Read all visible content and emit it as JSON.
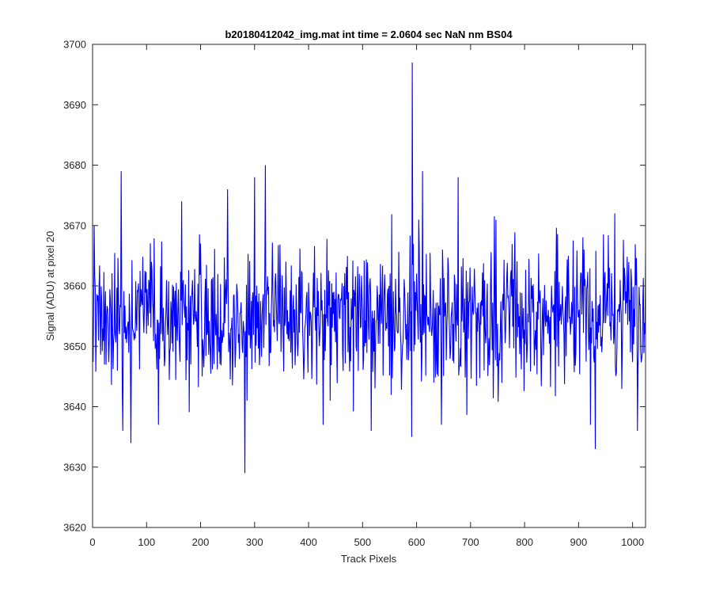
{
  "chart_data": {
    "type": "line",
    "title": "b20180412042_img.mat int time = 2.0604 sec  NaN nm BS04",
    "xlabel": "Track Pixels",
    "ylabel": "Signal (ADU) at pixel 20",
    "xlim": [
      0,
      1024
    ],
    "ylim": [
      3620,
      3700
    ],
    "xticks": [
      0,
      100,
      200,
      300,
      400,
      500,
      600,
      700,
      800,
      900,
      1000
    ],
    "yticks": [
      3620,
      3630,
      3640,
      3650,
      3660,
      3670,
      3680,
      3690,
      3700
    ],
    "grid": false,
    "legend": "none",
    "series": [
      {
        "color": "#0000ff",
        "n_points": 1024,
        "mean": 3655,
        "noise_std": 6.2,
        "seed": 20180412,
        "notable_points": [
          {
            "x": 52,
            "y": 3679
          },
          {
            "x": 55,
            "y": 3636
          },
          {
            "x": 70,
            "y": 3634
          },
          {
            "x": 121,
            "y": 3637
          },
          {
            "x": 164,
            "y": 3674
          },
          {
            "x": 249,
            "y": 3676
          },
          {
            "x": 281,
            "y": 3629
          },
          {
            "x": 299,
            "y": 3678
          },
          {
            "x": 319,
            "y": 3680
          },
          {
            "x": 515,
            "y": 3636
          },
          {
            "x": 591,
            "y": 3697
          },
          {
            "x": 590,
            "y": 3635
          },
          {
            "x": 610,
            "y": 3679
          },
          {
            "x": 676,
            "y": 3678
          },
          {
            "x": 930,
            "y": 3633
          },
          {
            "x": 1008,
            "y": 3636
          }
        ]
      }
    ]
  }
}
